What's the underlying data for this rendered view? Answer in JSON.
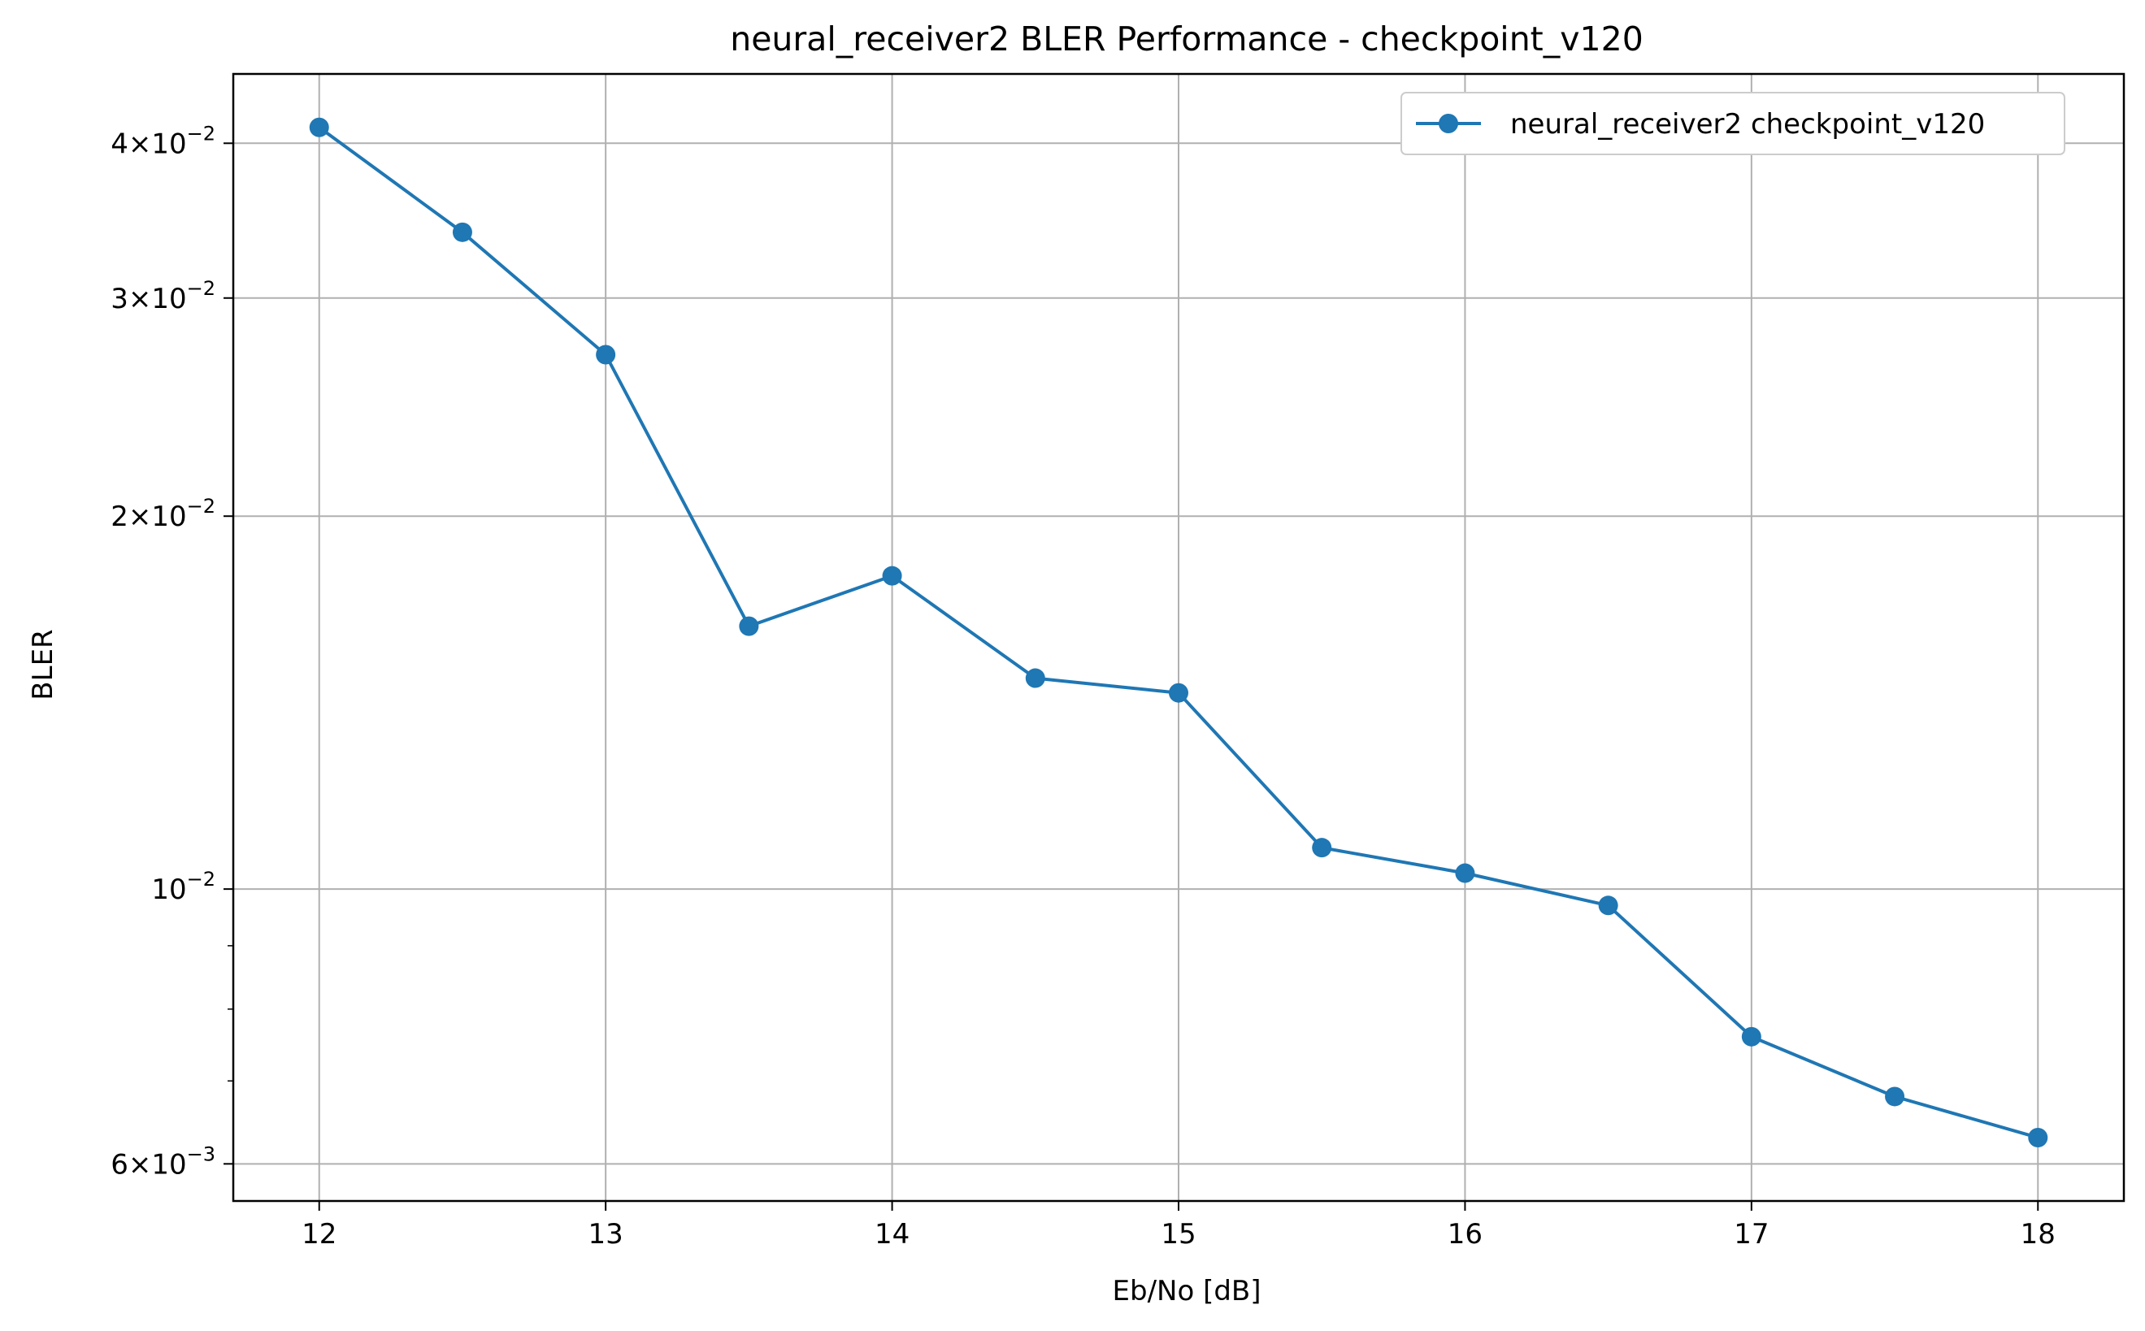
{
  "chart_data": {
    "type": "line",
    "title": "neural_receiver2 BLER Performance - checkpoint_v120",
    "xlabel": "Eb/No [dB]",
    "ylabel": "BLER",
    "yscale": "log",
    "grid": true,
    "legend_placement": "top-right",
    "xlim": [
      11.7,
      18.3
    ],
    "ylim": [
      0.0056,
      0.0455
    ],
    "x_ticks": [
      12,
      13,
      14,
      15,
      16,
      17,
      18
    ],
    "x_tick_labels": [
      "12",
      "13",
      "14",
      "15",
      "16",
      "17",
      "18"
    ],
    "y_ticks": [
      {
        "value": 0.04,
        "mantissa": "4",
        "exp": "−2"
      },
      {
        "value": 0.03,
        "mantissa": "3",
        "exp": "−2"
      },
      {
        "value": 0.02,
        "mantissa": "2",
        "exp": "−2"
      },
      {
        "value": 0.01,
        "mantissa": "",
        "exp": "−2"
      },
      {
        "value": 0.006,
        "mantissa": "6",
        "exp": "−3"
      }
    ],
    "y_minor_ticks": [
      0.007,
      0.008,
      0.009
    ],
    "series": [
      {
        "name": "neural_receiver2 checkpoint_v120",
        "color": "#1f77b4",
        "x": [
          12,
          12.5,
          13,
          13.5,
          14,
          14.5,
          15,
          15.5,
          16,
          16.5,
          17,
          17.5,
          18
        ],
        "y": [
          0.0412,
          0.0339,
          0.027,
          0.0163,
          0.0179,
          0.0148,
          0.0144,
          0.0108,
          0.0103,
          0.0097,
          0.0076,
          0.0068,
          0.0063
        ]
      }
    ]
  }
}
